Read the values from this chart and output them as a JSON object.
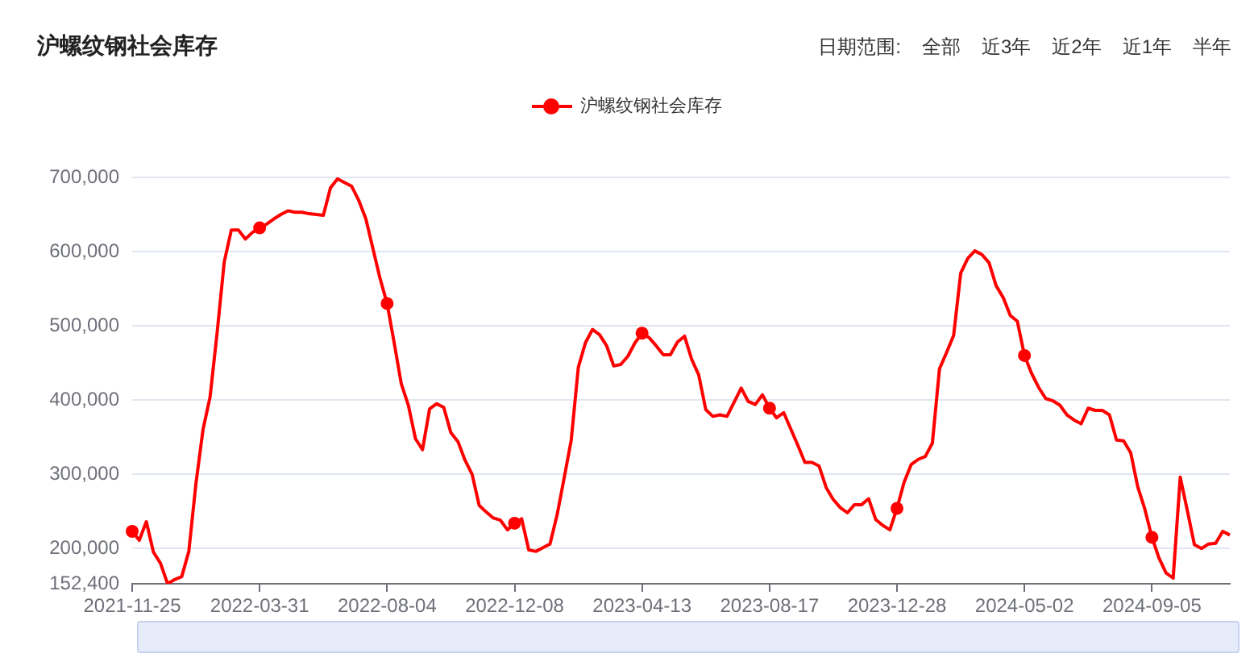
{
  "chart_data": {
    "type": "line",
    "title": "沪螺纹钢社会库存",
    "annotations": [
      "日期范围:",
      "全部",
      "近3年",
      "近2年",
      "近1年",
      "半年"
    ],
    "categories": [
      "2021-11-25",
      null,
      null,
      null,
      null,
      null,
      null,
      null,
      null,
      null,
      null,
      null,
      null,
      null,
      null,
      null,
      null,
      null,
      "2022-03-31",
      null,
      null,
      null,
      null,
      null,
      null,
      null,
      null,
      null,
      null,
      null,
      null,
      null,
      null,
      null,
      null,
      null,
      "2022-08-04",
      null,
      null,
      null,
      null,
      null,
      null,
      null,
      null,
      null,
      null,
      null,
      null,
      null,
      null,
      null,
      null,
      null,
      "2022-12-08",
      null,
      null,
      null,
      null,
      null,
      null,
      null,
      null,
      null,
      null,
      null,
      null,
      null,
      null,
      null,
      null,
      null,
      "2023-04-13",
      null,
      null,
      null,
      null,
      null,
      null,
      null,
      null,
      null,
      null,
      null,
      null,
      null,
      null,
      null,
      null,
      null,
      "2023-08-17",
      null,
      null,
      null,
      null,
      null,
      null,
      null,
      null,
      null,
      null,
      null,
      null,
      null,
      null,
      null,
      null,
      null,
      "2023-12-28",
      null,
      null,
      null,
      null,
      null,
      null,
      null,
      null,
      null,
      null,
      null,
      null,
      null,
      null,
      null,
      null,
      null,
      "2024-05-02",
      null,
      null,
      null,
      null,
      null,
      null,
      null,
      null,
      null,
      null,
      null,
      null,
      null,
      null,
      null,
      null,
      null,
      "2024-09-05",
      null,
      null,
      null,
      null,
      null,
      null,
      null,
      null,
      null,
      null,
      null
    ],
    "series": [
      {
        "type": "scatter",
        "color": "#ff0000",
        "values": [
          223000,
          null,
          null,
          null,
          null,
          null,
          null,
          null,
          null,
          null,
          null,
          null,
          null,
          null,
          null,
          null,
          null,
          null,
          632000,
          null,
          null,
          null,
          null,
          null,
          null,
          null,
          null,
          null,
          null,
          null,
          null,
          null,
          null,
          null,
          null,
          null,
          530000,
          null,
          null,
          null,
          null,
          null,
          null,
          null,
          null,
          null,
          null,
          null,
          null,
          null,
          null,
          null,
          null,
          null,
          234000,
          null,
          null,
          null,
          null,
          null,
          null,
          null,
          null,
          null,
          null,
          null,
          null,
          null,
          null,
          null,
          null,
          null,
          490000,
          null,
          null,
          null,
          null,
          null,
          null,
          null,
          null,
          null,
          null,
          null,
          null,
          null,
          null,
          null,
          null,
          null,
          389000,
          null,
          null,
          null,
          null,
          null,
          null,
          null,
          null,
          null,
          null,
          null,
          null,
          null,
          null,
          null,
          null,
          null,
          254000,
          null,
          null,
          null,
          null,
          null,
          null,
          null,
          null,
          null,
          null,
          null,
          null,
          null,
          null,
          null,
          null,
          null,
          460000,
          null,
          null,
          null,
          null,
          null,
          null,
          null,
          null,
          null,
          null,
          null,
          null,
          null,
          null,
          null,
          null,
          null,
          215000,
          null,
          null,
          null,
          null,
          null,
          null,
          null,
          null,
          null,
          null,
          null
        ]
      },
      {
        "name": "沪螺纹钢社会库存",
        "color": "#ff0000",
        "marker": "none",
        "values": [
          223000,
          211000,
          236000,
          195000,
          180000,
          152400,
          158000,
          162000,
          196000,
          287000,
          360000,
          404000,
          491000,
          586000,
          629000,
          629000,
          617000,
          626000,
          632000,
          637000,
          644000,
          650000,
          655000,
          653000,
          653000,
          651000,
          650000,
          649000,
          686000,
          698000,
          693000,
          688000,
          669000,
          644000,
          604000,
          564000,
          530000,
          477000,
          422000,
          393000,
          348000,
          333000,
          388000,
          395000,
          390000,
          356000,
          344000,
          319000,
          300000,
          258000,
          249000,
          241000,
          238000,
          225000,
          234000,
          240000,
          198000,
          196000,
          201000,
          206000,
          245000,
          295000,
          346000,
          444000,
          477000,
          495000,
          488000,
          473000,
          446000,
          448000,
          459000,
          477000,
          490000,
          484000,
          473000,
          461000,
          461000,
          478000,
          486000,
          455000,
          434000,
          387000,
          378000,
          380000,
          378000,
          397000,
          416000,
          398000,
          394000,
          407000,
          389000,
          376000,
          383000,
          361000,
          339000,
          316000,
          316000,
          311000,
          282000,
          266000,
          255000,
          248000,
          259000,
          259000,
          267000,
          239000,
          231000,
          225000,
          254000,
          289000,
          313000,
          320000,
          324000,
          342000,
          442000,
          464000,
          487000,
          571000,
          591000,
          601000,
          596000,
          585000,
          554000,
          538000,
          514000,
          506000,
          460000,
          436000,
          417000,
          402000,
          399000,
          393000,
          380000,
          373000,
          368000,
          389000,
          386000,
          386000,
          380000,
          346000,
          345000,
          329000,
          283000,
          253000,
          215000,
          187000,
          167000,
          160000,
          296000,
          251000,
          205000,
          200000,
          206000,
          207000,
          223000,
          218000
        ]
      }
    ],
    "ylim": [
      152400,
      700000
    ],
    "yticks": [
      {
        "value": 152400,
        "label": "152,400"
      },
      {
        "value": 200000,
        "label": "200,000"
      },
      {
        "value": 300000,
        "label": "300,000"
      },
      {
        "value": 400000,
        "label": "400,000"
      },
      {
        "value": 500000,
        "label": "500,000"
      },
      {
        "value": 600000,
        "label": "600,000"
      },
      {
        "value": 700000,
        "label": "700,000"
      }
    ],
    "grid": "y",
    "legend": "top",
    "marker": "circle",
    "line_style": "solid"
  }
}
